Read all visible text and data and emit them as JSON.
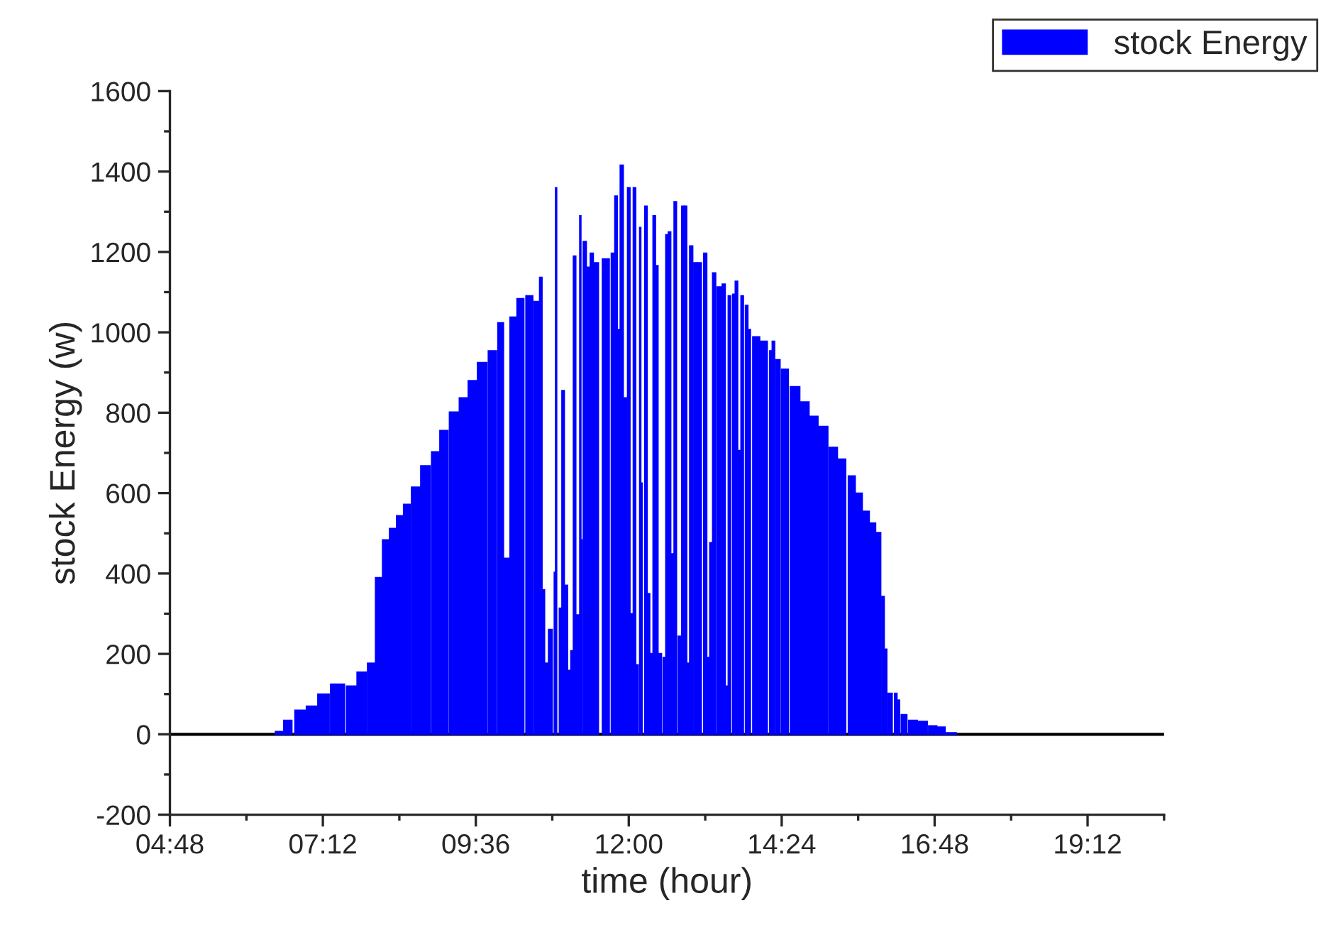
{
  "chart_data": {
    "type": "bar",
    "xlabel": "time (hour)",
    "ylabel": "stock Energy (w)",
    "x": [
      6.52,
      6.65,
      6.85,
      7.03,
      7.21,
      7.43,
      7.65,
      7.81,
      7.96,
      8.08,
      8.19,
      8.3,
      8.41,
      8.52,
      8.66,
      8.81,
      8.97,
      9.1,
      9.26,
      9.41,
      9.55,
      9.7,
      9.86,
      9.99,
      10.08,
      10.19,
      10.3,
      10.44,
      10.55,
      10.62,
      10.66,
      10.71,
      10.77,
      10.84,
      10.86,
      10.93,
      10.97,
      11.02,
      11.06,
      11.11,
      11.15,
      11.2,
      11.24,
      11.26,
      11.31,
      11.37,
      11.42,
      11.49,
      11.64,
      11.75,
      11.8,
      11.84,
      11.89,
      11.95,
      12.0,
      12.04,
      12.09,
      12.13,
      12.18,
      12.2,
      12.27,
      12.31,
      12.36,
      12.4,
      12.44,
      12.49,
      12.56,
      12.6,
      12.64,
      12.69,
      12.73,
      12.8,
      12.85,
      12.89,
      12.93,
      12.98,
      13.05,
      13.11,
      13.2,
      13.25,
      13.29,
      13.34,
      13.42,
      13.49,
      13.54,
      13.58,
      13.65,
      13.69,
      13.74,
      13.78,
      13.85,
      13.89,
      14.0,
      14.12,
      14.23,
      14.27,
      14.34,
      14.45,
      14.61,
      14.76,
      14.9,
      15.05,
      15.21,
      15.34,
      15.5,
      15.61,
      15.72,
      15.83,
      15.92,
      15.99,
      16.03,
      16.1,
      16.19,
      16.23,
      16.32,
      16.46,
      16.61,
      16.77,
      16.9,
      17.06
    ],
    "series": [
      {
        "name": "stock Energy",
        "color": "#0000ff",
        "values": [
          7,
          35,
          60,
          70,
          100,
          125,
          120,
          155,
          177,
          390,
          484,
          512,
          544,
          572,
          615,
          668,
          703,
          756,
          802,
          837,
          880,
          925,
          954,
          1024,
          438,
          1038,
          1084,
          1091,
          1077,
          1137,
          360,
          177,
          261,
          403,
          1360,
          314,
          855,
          371,
          159,
          208,
          1190,
          297,
          1290,
          484,
          1226,
          1162,
          1197,
          1173,
          1183,
          1197,
          1339,
          1007,
          1416,
          837,
          1360,
          300,
          1360,
          173,
          1261,
          625,
          1314,
          350,
          201,
          1290,
          1166,
          201,
          191,
          1243,
          1250,
          449,
          1325,
          244,
          1314,
          1314,
          177,
          1215,
          1173,
          1173,
          1197,
          191,
          477,
          1148,
          1113,
          1120,
          120,
          1091,
          1095,
          1127,
          706,
          1091,
          1067,
          1007,
          989,
          978,
          954,
          978,
          932,
          908,
          865,
          827,
          791,
          766,
          714,
          685,
          643,
          600,
          555,
          526,
          502,
          343,
          212,
          102,
          102,
          85,
          49,
          35,
          32,
          21,
          18,
          4
        ]
      }
    ],
    "xlim": [
      4.8,
      20.4
    ],
    "xticks": [
      {
        "value": 4.8,
        "label": "04:48"
      },
      {
        "value": 7.2,
        "label": "07:12"
      },
      {
        "value": 9.6,
        "label": "09:36"
      },
      {
        "value": 12,
        "label": "12:00"
      },
      {
        "value": 14.4,
        "label": "14:24"
      },
      {
        "value": 16.8,
        "label": "16:48"
      },
      {
        "value": 19.2,
        "label": "19:12"
      }
    ],
    "ylim": [
      -200,
      1600
    ],
    "yticks": [
      -200,
      0,
      200,
      400,
      600,
      800,
      1000,
      1200,
      1400,
      1600
    ],
    "ref_lines": [
      {
        "axis": "y",
        "value": 0,
        "label": null,
        "color": "#000000"
      }
    ],
    "grid": false,
    "legend": "top right"
  }
}
